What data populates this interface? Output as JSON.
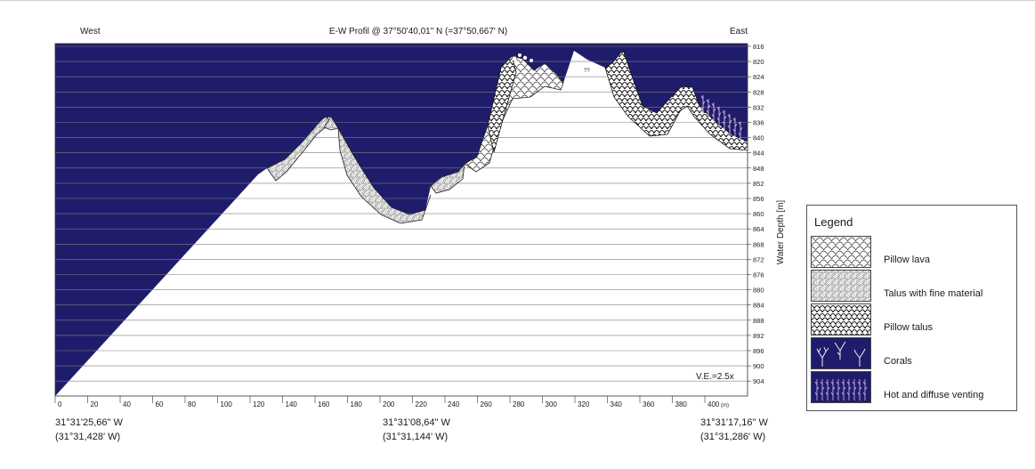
{
  "header": {
    "west_label": "West",
    "east_label": "East",
    "title": "E-W Profil @ 37°50'40,01\" N (=37°50,667' N)"
  },
  "axes": {
    "y_title": "Water Depth [m]",
    "y_ticks": [
      "816",
      "820",
      "824",
      "828",
      "832",
      "836",
      "840",
      "844",
      "848",
      "852",
      "856",
      "860",
      "864",
      "868",
      "872",
      "876",
      "880",
      "884",
      "888",
      "892",
      "896",
      "900",
      "904"
    ],
    "x_ticks": [
      "0",
      "20",
      "40",
      "60",
      "80",
      "100",
      "120",
      "140",
      "160",
      "180",
      "200",
      "220",
      "240",
      "260",
      "280",
      "300",
      "320",
      "340",
      "360",
      "380",
      "400"
    ],
    "x_unit": "(m)",
    "vertical_exaggeration": "V.E.=2.5x",
    "marker_label": "??"
  },
  "coordinates": [
    {
      "line1": "31°31'25,66\" W",
      "line2": "(31°31,428' W)"
    },
    {
      "line1": "31°31'08,64\" W",
      "line2": "(31°31,144' W)"
    },
    {
      "line1": "31°31'17,16\" W",
      "line2": "(31°31,286' W)"
    }
  ],
  "legend": {
    "title": "Legend",
    "items": [
      {
        "label": "Pillow lava",
        "icon": "pillow-lava-pattern"
      },
      {
        "label": "Talus with fine material",
        "icon": "talus-pattern"
      },
      {
        "label": "Pillow talus",
        "icon": "pillow-talus-pattern"
      },
      {
        "label": "Corals",
        "icon": "coral-icon"
      },
      {
        "label": "Hot and diffuse venting",
        "icon": "venting-icon"
      }
    ]
  },
  "colors": {
    "water": "#1f1d6b",
    "grid_line": "#7f7f7f",
    "rock_fill": "#ffffff",
    "rock_outline": "#222222",
    "venting": "#c9a9df"
  }
}
